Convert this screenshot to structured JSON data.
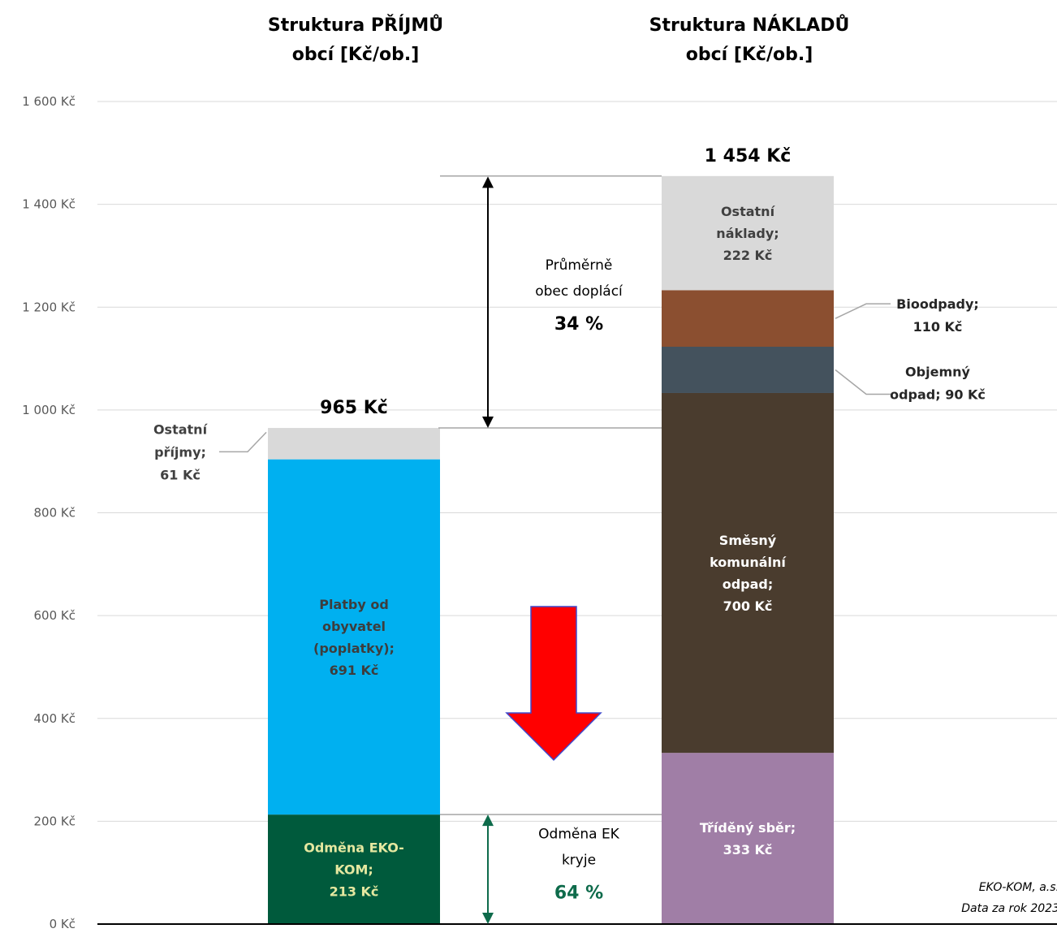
{
  "chart_data": {
    "type": "bar",
    "stacked": true,
    "unit_suffix": " Kč",
    "ylim": [
      0,
      1600
    ],
    "yticks": [
      0,
      200,
      400,
      600,
      800,
      1000,
      1200,
      1400,
      1600
    ],
    "ytick_labels": [
      "0 Kč",
      "200 Kč",
      "400 Kč",
      "600 Kč",
      "800 Kč",
      "1 000 Kč",
      "1 200 Kč",
      "1 400 Kč",
      "1 600 Kč"
    ],
    "grid": true,
    "bars": [
      {
        "title_lines": [
          "Struktura PŘÍJMŮ",
          "obcí [Kč/ob.]"
        ],
        "total_label": "965 Kč",
        "segments": [
          {
            "label_lines": [
              "Odměna EKO-",
              "KOM;",
              "213 Kč"
            ],
            "value": 213,
            "color": "#005A3C",
            "label_color": "#E5E8A0",
            "label_pos": "inside"
          },
          {
            "label_lines": [
              "Platby od",
              "obyvatel",
              "(poplatky);",
              "691 Kč"
            ],
            "value": 691,
            "color": "#00B0F0",
            "label_color": "#3D3D3D",
            "label_pos": "inside"
          },
          {
            "label_lines": [
              "Ostatní",
              "příjmy;",
              "61 Kč"
            ],
            "value": 61,
            "color": "#D9D9D9",
            "label_color": "#404040",
            "label_pos": "left"
          }
        ]
      },
      {
        "title_lines": [
          "Struktura NÁKLADŮ",
          "obcí [Kč/ob.]"
        ],
        "total_label": "1 454 Kč",
        "segments": [
          {
            "label_lines": [
              "Tříděný sběr;",
              "333 Kč"
            ],
            "value": 333,
            "color": "#A07EA6",
            "label_color": "#FFFFFF",
            "label_pos": "inside"
          },
          {
            "label_lines": [
              "Směsný",
              "komunální",
              "odpad;",
              "700 Kč"
            ],
            "value": 700,
            "color": "#4A3C2E",
            "label_color": "#FFFFFF",
            "label_pos": "inside"
          },
          {
            "label_lines": [
              "Objemný",
              "odpad;  90 Kč"
            ],
            "value": 90,
            "color": "#44525D",
            "label_color": "#262626",
            "label_pos": "right"
          },
          {
            "label_lines": [
              "Bioodpady;",
              "110 Kč"
            ],
            "value": 110,
            "color": "#8B4F30",
            "label_color": "#262626",
            "label_pos": "right"
          },
          {
            "label_lines": [
              "Ostatní",
              "náklady;",
              "222 Kč"
            ],
            "value": 222,
            "color": "#D9D9D9",
            "label_color": "#404040",
            "label_pos": "inside"
          }
        ]
      }
    ],
    "annotations": [
      {
        "text_lines": [
          "Průměrně",
          "obec doplácí"
        ],
        "highlight": "34 %",
        "from": 965,
        "to": 1454,
        "color": "#000000"
      },
      {
        "text_lines": [
          "Odměna EK",
          "kryje"
        ],
        "highlight": "64 %",
        "from": 0,
        "to": 213,
        "color": "#0E6B4B"
      }
    ],
    "arrow": {
      "direction": "down",
      "color": "#FF0000",
      "outline": "#3F48CC"
    },
    "source_lines": [
      "EKO-KOM, a.s.",
      "Data za rok 2023"
    ]
  }
}
